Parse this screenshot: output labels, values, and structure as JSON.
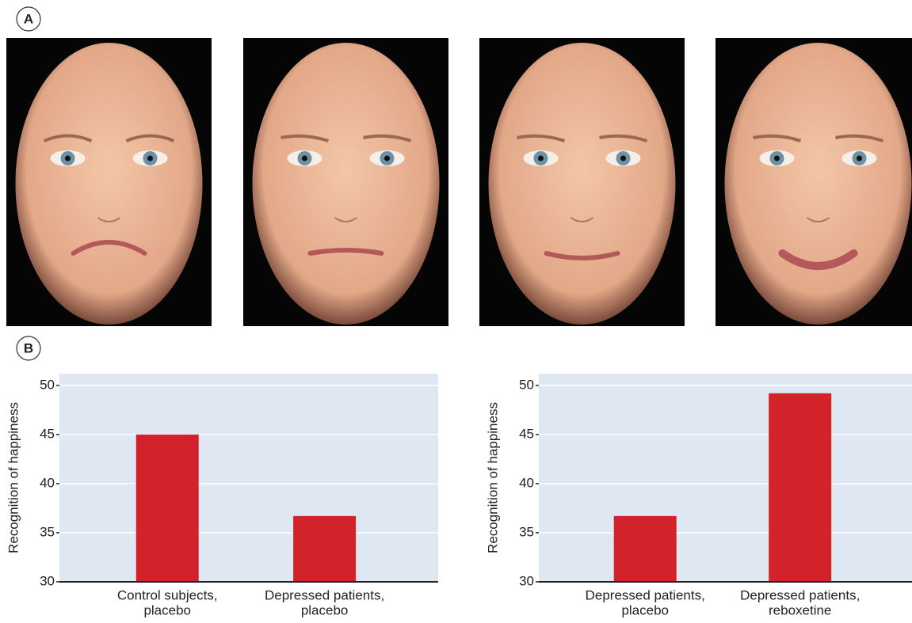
{
  "panels": [
    "A",
    "B"
  ],
  "chart_data": [
    {
      "type": "bar",
      "ylabel": "Recognition of happiness",
      "categories": [
        [
          "Control subjects,",
          "placebo"
        ],
        [
          "Depressed patients,",
          "placebo"
        ]
      ],
      "values": [
        45,
        36.7
      ],
      "color": "#d2232a",
      "ylim": [
        30,
        51.2
      ],
      "yticks": [
        30,
        35,
        40,
        45,
        50
      ],
      "grid": true
    },
    {
      "type": "bar",
      "ylabel": "Recognition of happiness",
      "categories": [
        [
          "Depressed patients,",
          "placebo"
        ],
        [
          "Depressed patients,",
          "reboxetine"
        ]
      ],
      "values": [
        36.7,
        49.2
      ],
      "color": "#d2232a",
      "ylim": [
        30,
        51.2
      ],
      "yticks": [
        30,
        35,
        40,
        45,
        50
      ],
      "grid": true
    }
  ]
}
